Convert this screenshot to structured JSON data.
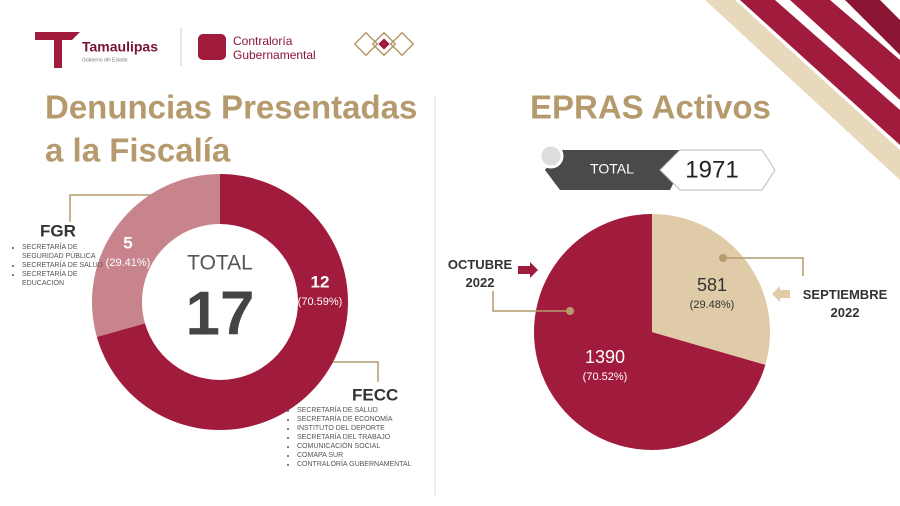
{
  "header": {
    "brand": "Tamaulipas",
    "brand_tagline": "Gobierno del Estado",
    "office": [
      "Contraloría",
      "Gubernamental"
    ]
  },
  "chart_data": [
    {
      "type": "donut",
      "title": [
        "Denuncias Presentadas",
        "a la Fiscalía"
      ],
      "center_label": "TOTAL",
      "total": 17,
      "categories": [
        "FGR",
        "FECC"
      ],
      "values": [
        5,
        12
      ],
      "percent_labels": [
        "(29.41%)",
        "(70.59%)"
      ],
      "colors": [
        "#c7848d",
        "#a01b3c"
      ],
      "item_lists": [
        [
          "SECRETARÍA DE SEGURIDAD PÚBLICA",
          "SECRETARÍA DE SALUD",
          "SECRETARÍA DE EDUCACIÓN"
        ],
        [
          "SECRETARÍA DE SALUD",
          "SECRETARÍA DE ECONOMÍA",
          "INSTITUTO DEL DEPORTE",
          "SECRETARÍA DEL TRABAJO",
          "COMUNICACIÓN SOCIAL",
          "COMAPA SUR",
          "CONTRALORÍA GUBERNAMENTAL"
        ]
      ]
    },
    {
      "type": "pie",
      "title": "EPRAS Activos",
      "total_label": "TOTAL",
      "total": 1971,
      "categories": [
        "OCTUBRE 2022",
        "SEPTIEMBRE 2022"
      ],
      "values": [
        1390,
        581
      ],
      "percent_labels": [
        "(70.52%)",
        "(29.48%)"
      ],
      "colors": [
        "#a01b3c",
        "#dfcba8"
      ]
    }
  ]
}
